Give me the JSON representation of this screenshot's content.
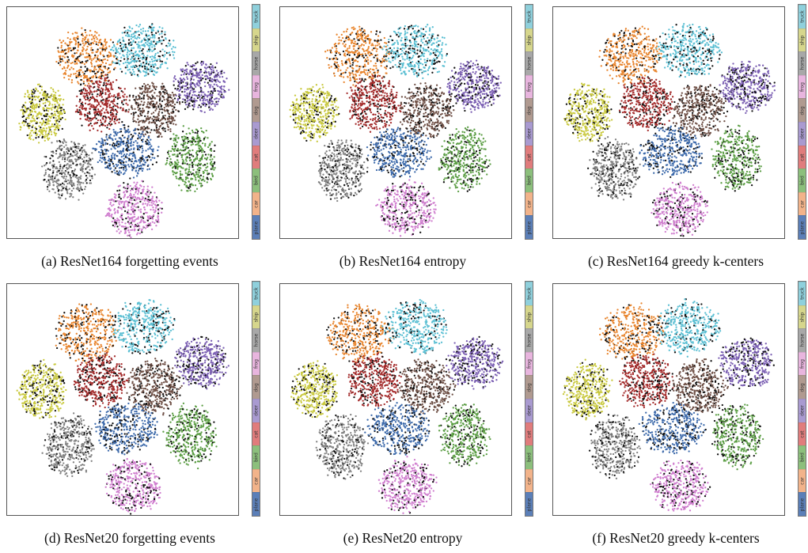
{
  "classes": [
    "plane",
    "car",
    "bird",
    "cat",
    "deer",
    "dog",
    "frog",
    "horse",
    "ship",
    "truck"
  ],
  "colors": {
    "plane": "#5b7fb8",
    "car": "#f2b38a",
    "bird": "#8cbf7c",
    "cat": "#e07c7c",
    "deer": "#a99ad0",
    "dog": "#b09a90",
    "frog": "#e8b5de",
    "horse": "#a8a8a8",
    "ship": "#d6d68c",
    "truck": "#8fd0dc"
  },
  "chart_data": [
    {
      "type": "scatter",
      "caption": "(a) ResNet164 forgetting events",
      "colorbar_labels": [
        "plane",
        "car",
        "bird",
        "cat",
        "deer",
        "dog",
        "frog",
        "horse",
        "ship",
        "truck"
      ]
    },
    {
      "type": "scatter",
      "caption": "(b) ResNet164 entropy",
      "colorbar_labels": [
        "plane",
        "car",
        "bird",
        "cat",
        "deer",
        "dog",
        "frog",
        "horse",
        "ship",
        "truck"
      ]
    },
    {
      "type": "scatter",
      "caption": "(c) ResNet164 greedy k-centers",
      "colorbar_labels": [
        "plane",
        "car",
        "bird",
        "cat",
        "deer",
        "dog",
        "frog",
        "horse",
        "ship",
        "truck"
      ]
    },
    {
      "type": "scatter",
      "caption": "(d) ResNet20 forgetting events",
      "colorbar_labels": [
        "plane",
        "car",
        "bird",
        "cat",
        "deer",
        "dog",
        "frog",
        "horse",
        "ship",
        "truck"
      ]
    },
    {
      "type": "scatter",
      "caption": "(e) ResNet20 entropy",
      "colorbar_labels": [
        "plane",
        "car",
        "bird",
        "cat",
        "deer",
        "dog",
        "frog",
        "horse",
        "ship",
        "truck"
      ]
    },
    {
      "type": "scatter",
      "caption": "(f) ResNet20 greedy k-centers",
      "colorbar_labels": [
        "plane",
        "car",
        "bird",
        "cat",
        "deer",
        "dog",
        "frog",
        "horse",
        "ship",
        "truck"
      ]
    }
  ]
}
